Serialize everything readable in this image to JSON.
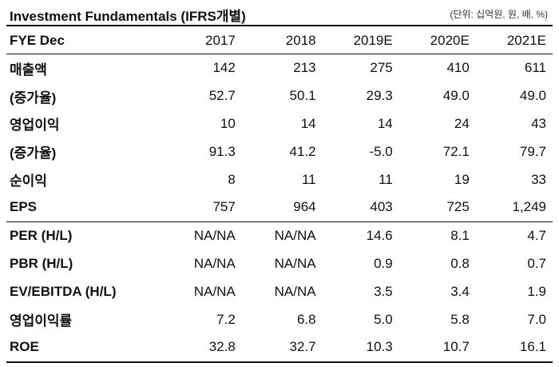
{
  "title": "Investment Fundamentals (IFRS개별)",
  "unit": "(단위: 십억원, 원, 배, %)",
  "header": {
    "label": "FYE Dec",
    "years": [
      "2017",
      "2018",
      "2019E",
      "2020E",
      "2021E"
    ]
  },
  "rows": [
    {
      "label": "매출액",
      "values": [
        "142",
        "213",
        "275",
        "410",
        "611"
      ]
    },
    {
      "label": "(증가율)",
      "values": [
        "52.7",
        "50.1",
        "29.3",
        "49.0",
        "49.0"
      ]
    },
    {
      "label": "영업이익",
      "values": [
        "10",
        "14",
        "14",
        "24",
        "43"
      ]
    },
    {
      "label": "(증가율)",
      "values": [
        "91.3",
        "41.2",
        "-5.0",
        "72.1",
        "79.7"
      ]
    },
    {
      "label": "순이익",
      "values": [
        "8",
        "11",
        "11",
        "19",
        "33"
      ]
    },
    {
      "label": "EPS",
      "values": [
        "757",
        "964",
        "403",
        "725",
        "1,249"
      ]
    },
    {
      "label": "PER (H/L)",
      "values": [
        "NA/NA",
        "NA/NA",
        "14.6",
        "8.1",
        "4.7"
      ]
    },
    {
      "label": "PBR (H/L)",
      "values": [
        "NA/NA",
        "NA/NA",
        "0.9",
        "0.8",
        "0.7"
      ]
    },
    {
      "label": "EV/EBITDA (H/L)",
      "values": [
        "NA/NA",
        "NA/NA",
        "3.5",
        "3.4",
        "1.9"
      ]
    },
    {
      "label": "영업이익률",
      "values": [
        "7.2",
        "6.8",
        "5.0",
        "5.8",
        "7.0"
      ]
    },
    {
      "label": "ROE",
      "values": [
        "32.8",
        "32.7",
        "10.3",
        "10.7",
        "16.1"
      ]
    }
  ]
}
